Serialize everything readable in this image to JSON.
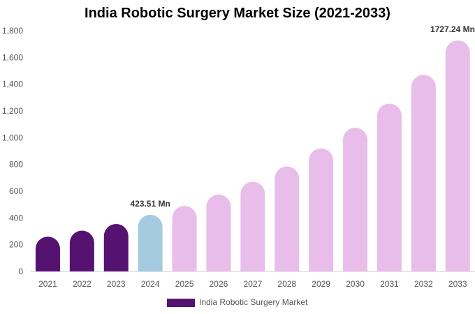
{
  "chart_data": {
    "type": "bar",
    "title": "India Robotic Surgery Market Size (2021-2033)",
    "categories": [
      "2021",
      "2022",
      "2023",
      "2024",
      "2025",
      "2026",
      "2027",
      "2028",
      "2029",
      "2030",
      "2031",
      "2032",
      "2033"
    ],
    "series": [
      {
        "name": "India Robotic Surgery Market",
        "values": [
          260,
          305,
          355,
          423.51,
          490,
          575,
          670,
          785,
          920,
          1075,
          1255,
          1470,
          1727.24
        ]
      }
    ],
    "data_labels": [
      {
        "index": 3,
        "text": "423.51 Mn"
      },
      {
        "index": 12,
        "text": "1727.24 Mn"
      }
    ],
    "y_ticks": [
      "0",
      "200",
      "400",
      "600",
      "800",
      "1,000",
      "1,200",
      "1,400",
      "1,600",
      "1,800"
    ],
    "ylim": [
      0,
      1800
    ],
    "grid": false,
    "legend_position": "bottom",
    "colors": {
      "historical": "#561271",
      "base_year": "#a4cbe0",
      "forecast": "#e8bde9",
      "legend": "#561271"
    }
  }
}
